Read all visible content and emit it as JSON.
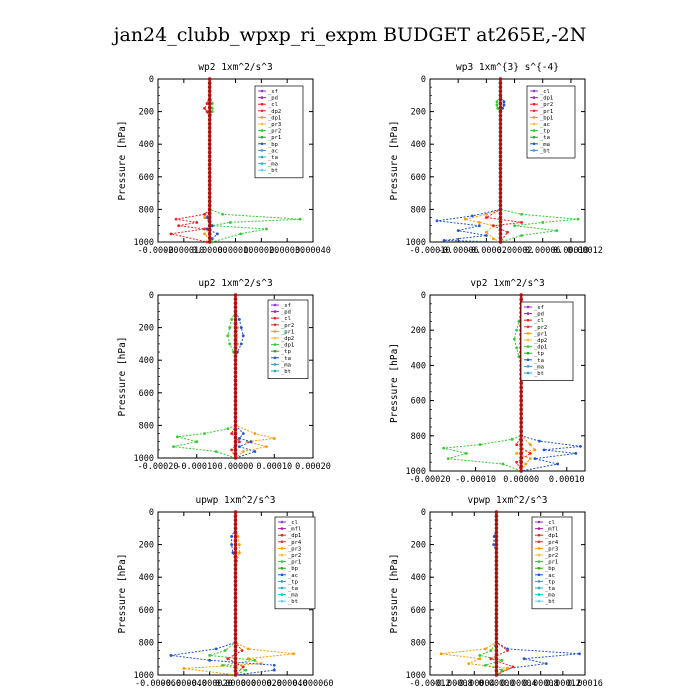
{
  "figure_title": "jan24_clubb_wpxp_ri_expm  BUDGET at265E,-2N",
  "chart_data": [
    {
      "type": "line",
      "title": "wp2  1xm^2/s^3",
      "ylabel": "Pressure [hPa]",
      "xlim": [
        -0.0002,
        0.0004
      ],
      "ylim": [
        1000,
        0
      ],
      "xticks": [
        "-0.00020",
        "-0.00010",
        "0.00000",
        "0.00010",
        "0.00020",
        "0.00030",
        "0.00040"
      ],
      "yticks": [
        "0",
        "200",
        "400",
        "600",
        "800",
        "1000"
      ],
      "legend": [
        "_sf",
        "_pd",
        "_cl",
        "_dp2",
        "_dp1",
        "_pr3",
        "_pr2",
        "_pr1",
        "_bp",
        "_ac",
        "_ta",
        "_ma",
        "_bt"
      ],
      "series": [
        {
          "color": "#ff9900",
          "y": [
            0,
            50,
            100,
            150,
            200,
            250,
            300,
            400,
            500,
            600,
            700,
            800,
            850,
            900,
            950,
            1000
          ],
          "x": [
            0,
            0,
            0,
            0,
            0,
            0,
            0,
            0,
            0,
            0,
            0,
            0,
            -2e-05,
            1e-05,
            -2e-05,
            1e-05
          ]
        },
        {
          "color": "#33cc33",
          "y": [
            0,
            100,
            150,
            180,
            200,
            250,
            300,
            400,
            500,
            600,
            700,
            800,
            830,
            860,
            880,
            900,
            920,
            950,
            1000
          ],
          "x": [
            0,
            0,
            1e-05,
            1e-05,
            1e-05,
            0,
            0,
            0,
            0,
            0,
            0,
            0,
            5e-05,
            0.00035,
            8e-05,
            1e-05,
            0.00022,
            0.00012,
            1e-05
          ]
        },
        {
          "color": "#ee2222",
          "y": [
            0,
            100,
            150,
            180,
            200,
            250,
            300,
            400,
            500,
            600,
            700,
            800,
            830,
            860,
            880,
            900,
            920,
            950,
            1000
          ],
          "x": [
            0,
            0,
            -1e-05,
            -2e-05,
            -1e-05,
            0,
            0,
            0,
            0,
            0,
            0,
            0,
            -2e-05,
            -0.00013,
            -5e-05,
            -0.00012,
            -2e-05,
            -0.00015,
            -1e-05
          ]
        },
        {
          "color": "#2255cc",
          "y": [
            0,
            800,
            850,
            900,
            920,
            950,
            980,
            1000
          ],
          "x": [
            0,
            0,
            -1e-05,
            1e-05,
            -1e-05,
            3e-05,
            1e-05,
            0
          ]
        },
        {
          "color": "#9933cc",
          "y": [
            0,
            200,
            400,
            600,
            800,
            900,
            950,
            1000
          ],
          "x": [
            0,
            0,
            0,
            0,
            0,
            0,
            0,
            0
          ]
        }
      ]
    },
    {
      "type": "line",
      "title": "wp3  1xm^{3} s^{-4}",
      "ylabel": "Pressure [hPa]",
      "xlim": [
        -0.0001,
        0.00012
      ],
      "ylim": [
        1000,
        0
      ],
      "xticks": [
        "-0.00010",
        "-0.00006",
        "-0.00002",
        "0.00002",
        "0.00006",
        "0.00010",
        "0.00012"
      ],
      "yticks": [
        "0",
        "200",
        "400",
        "600",
        "800",
        "1000"
      ],
      "legend": [
        "_cl",
        "_dp1",
        "_pr2",
        "_pr1",
        "_bp1",
        "_ac",
        "_tp",
        "_ta",
        "_ma",
        "_bt"
      ],
      "series": [
        {
          "color": "#33cc33",
          "y": [
            0,
            100,
            140,
            160,
            180,
            200,
            300,
            600,
            800,
            830,
            860,
            880,
            900,
            930,
            960,
            1000
          ],
          "x": [
            0,
            0,
            -5e-06,
            -5e-06,
            -4e-06,
            0,
            0,
            0,
            0,
            3e-05,
            0.00011,
            6e-05,
            2e-05,
            8e-05,
            3e-05,
            0
          ]
        },
        {
          "color": "#ff9900",
          "y": [
            0,
            600,
            800,
            830,
            860,
            880,
            900,
            940,
            980,
            1000
          ],
          "x": [
            0,
            0,
            0,
            -2e-05,
            -5e-05,
            -3e-05,
            -1e-05,
            -2e-05,
            -1e-05,
            0
          ]
        },
        {
          "color": "#2255cc",
          "y": [
            0,
            100,
            140,
            160,
            180,
            200,
            600,
            800,
            840,
            870,
            900,
            930,
            960,
            990,
            1000
          ],
          "x": [
            0,
            0,
            5e-06,
            5e-06,
            3e-06,
            0,
            0,
            0,
            -4e-05,
            -9e-05,
            -3e-05,
            -6e-05,
            -2e-05,
            -8e-05,
            0
          ]
        },
        {
          "color": "#ee2222",
          "y": [
            0,
            800,
            850,
            880,
            900,
            940,
            1000
          ],
          "x": [
            0,
            0,
            -2e-05,
            3e-05,
            -1e-05,
            1e-05,
            0
          ]
        },
        {
          "color": "#9933cc",
          "y": [
            0,
            200,
            400,
            600,
            800,
            900,
            1000
          ],
          "x": [
            0,
            0,
            0,
            0,
            0,
            0,
            0
          ]
        }
      ]
    },
    {
      "type": "line",
      "title": "up2  1xm^2/s^3",
      "ylabel": "Pressure [hPa]",
      "xlim": [
        -0.0002,
        0.0002
      ],
      "ylim": [
        1000,
        0
      ],
      "xticks": [
        "-0.00020",
        "-0.00010",
        "0.00000",
        "0.00010",
        "0.00020"
      ],
      "yticks": [
        "0",
        "200",
        "400",
        "600",
        "800",
        "1000"
      ],
      "legend": [
        "_sf",
        "_pd",
        "_cl",
        "_pr2",
        "_pr1",
        "_dp2",
        "_dp1",
        "_tp",
        "_ta",
        "_ma",
        "_bt"
      ],
      "series": [
        {
          "color": "#33cc33",
          "y": [
            0,
            100,
            150,
            200,
            250,
            300,
            350,
            400,
            600,
            800,
            820,
            850,
            870,
            900,
            930,
            960,
            1000
          ],
          "x": [
            0,
            0,
            -1e-05,
            -1.5e-05,
            -2e-05,
            -1.5e-05,
            -5e-06,
            0,
            0,
            0,
            -2e-05,
            -8e-05,
            -0.00015,
            -0.0001,
            -0.00016,
            -5e-05,
            0
          ]
        },
        {
          "color": "#ff9900",
          "y": [
            0,
            100,
            200,
            300,
            400,
            600,
            800,
            850,
            880,
            900,
            930,
            960,
            1000
          ],
          "x": [
            0,
            0,
            5e-06,
            5e-06,
            0,
            0,
            0,
            5e-05,
            0.0001,
            3e-05,
            8e-05,
            2e-05,
            0
          ]
        },
        {
          "color": "#2255cc",
          "y": [
            0,
            100,
            150,
            200,
            250,
            300,
            350,
            400,
            600,
            800,
            850,
            880,
            900,
            930,
            960,
            1000
          ],
          "x": [
            0,
            0,
            1e-05,
            1.5e-05,
            2e-05,
            1.5e-05,
            5e-06,
            0,
            0,
            0,
            2e-05,
            1e-05,
            4e-05,
            1e-05,
            5e-05,
            0
          ]
        },
        {
          "color": "#ee2222",
          "y": [
            0,
            400,
            800,
            850,
            900,
            950,
            1000
          ],
          "x": [
            0,
            0,
            0,
            -1e-05,
            1e-05,
            -1e-05,
            0
          ]
        },
        {
          "color": "#9933cc",
          "y": [
            0,
            200,
            400,
            600,
            800,
            1000
          ],
          "x": [
            0,
            0,
            0,
            0,
            0,
            0
          ]
        }
      ]
    },
    {
      "type": "line",
      "title": "vp2  1xm^2/s^3",
      "ylabel": "Pressure [hPa]",
      "xlim": [
        -0.0002,
        0.00014
      ],
      "ylim": [
        1000,
        0
      ],
      "xticks": [
        "-0.00020",
        "-0.00010",
        "0.00000",
        "0.00010"
      ],
      "yticks": [
        "0",
        "200",
        "400",
        "600",
        "800",
        "1000"
      ],
      "legend": [
        "_sf",
        "_pd",
        "_cl",
        "_pr2",
        "_pr1",
        "_dp2",
        "_dp1",
        "_tp",
        "_ta",
        "_ma",
        "_bt"
      ],
      "series": [
        {
          "color": "#33cc33",
          "y": [
            0,
            100,
            150,
            200,
            250,
            300,
            350,
            400,
            600,
            800,
            820,
            850,
            870,
            900,
            930,
            960,
            1000
          ],
          "x": [
            0,
            0,
            -5e-06,
            -1e-05,
            -1.5e-05,
            -1e-05,
            -5e-06,
            0,
            0,
            0,
            -2e-05,
            -9e-05,
            -0.00017,
            -0.00012,
            -0.00016,
            -4e-05,
            0
          ]
        },
        {
          "color": "#ff9900",
          "y": [
            0,
            600,
            800,
            850,
            880,
            900,
            930,
            960,
            1000
          ],
          "x": [
            0,
            0,
            0,
            2e-05,
            3e-05,
            -1e-05,
            2e-05,
            1e-05,
            0
          ]
        },
        {
          "color": "#2255cc",
          "y": [
            0,
            100,
            150,
            200,
            250,
            300,
            350,
            400,
            600,
            800,
            830,
            860,
            880,
            900,
            930,
            960,
            1000
          ],
          "x": [
            0,
            0,
            1e-05,
            1.5e-05,
            2e-05,
            1.5e-05,
            1e-05,
            0,
            0,
            0,
            4e-05,
            0.00013,
            5e-05,
            0.00012,
            3e-05,
            8e-05,
            0
          ]
        },
        {
          "color": "#ee2222",
          "y": [
            0,
            400,
            800,
            850,
            900,
            950,
            1000
          ],
          "x": [
            0,
            0,
            0,
            -1e-05,
            2e-05,
            -1e-05,
            0
          ]
        },
        {
          "color": "#9933cc",
          "y": [
            0,
            200,
            400,
            600,
            800,
            1000
          ],
          "x": [
            0,
            0,
            0,
            0,
            0,
            0
          ]
        }
      ]
    },
    {
      "type": "line",
      "title": "upwp  1xm^2/s^3",
      "ylabel": "Pressure [hPa]",
      "xlim": [
        -6e-05,
        6e-05
      ],
      "ylim": [
        1000,
        0
      ],
      "xticks": [
        "-0.000060",
        "-0.000040",
        "-0.000020",
        "0.000000",
        "0.000020",
        "0.000040",
        "0.000060"
      ],
      "yticks": [
        "0",
        "200",
        "400",
        "600",
        "800",
        "1000"
      ],
      "legend": [
        "_cl",
        "_mfl",
        "_dp1",
        "_pr4",
        "_pr3",
        "_pr2",
        "_pr1",
        "_bp",
        "_ac",
        "_tp",
        "_ta",
        "_ma",
        "_bt"
      ],
      "series": [
        {
          "color": "#ff9900",
          "y": [
            0,
            100,
            150,
            200,
            250,
            300,
            400,
            600,
            800,
            840,
            870,
            900,
            930,
            960,
            1000
          ],
          "x": [
            0,
            0,
            2e-06,
            3e-06,
            3e-06,
            1e-06,
            0,
            0,
            0,
            1e-05,
            4.5e-05,
            1e-05,
            2e-05,
            -4e-05,
            0
          ]
        },
        {
          "color": "#2255cc",
          "y": [
            0,
            100,
            150,
            200,
            250,
            300,
            400,
            600,
            800,
            840,
            880,
            910,
            940,
            970,
            1000
          ],
          "x": [
            0,
            0,
            -3e-06,
            -3e-06,
            -2e-06,
            0,
            0,
            0,
            0,
            -1.5e-05,
            -5e-05,
            -2e-05,
            3e-05,
            3e-05,
            0
          ]
        },
        {
          "color": "#33cc33",
          "y": [
            0,
            600,
            800,
            850,
            880,
            910,
            940,
            970,
            1000
          ],
          "x": [
            0,
            0,
            0,
            -8e-06,
            -2e-05,
            1.5e-05,
            -1e-05,
            8e-06,
            0
          ]
        },
        {
          "color": "#ee2222",
          "y": [
            0,
            600,
            800,
            850,
            900,
            950,
            1000
          ],
          "x": [
            0,
            0,
            0,
            5e-06,
            -6e-06,
            6e-06,
            0
          ]
        },
        {
          "color": "#9933cc",
          "y": [
            0,
            200,
            400,
            600,
            800,
            1000
          ],
          "x": [
            0,
            0,
            0,
            0,
            0,
            0
          ]
        }
      ]
    },
    {
      "type": "line",
      "title": "vpwp  1xm^2/s^3",
      "ylabel": "Pressure [hPa]",
      "xlim": [
        -0.00012,
        0.00016
      ],
      "ylim": [
        1000,
        0
      ],
      "xticks": [
        "-0.00012",
        "-0.00008",
        "-0.00004",
        "0.00000",
        "0.00004",
        "0.00008",
        "0.00012",
        "0.00016"
      ],
      "yticks": [
        "0",
        "200",
        "400",
        "600",
        "800",
        "1000"
      ],
      "legend": [
        "_cl",
        "_mfl",
        "_dp1",
        "_pr4",
        "_pr3",
        "_pr2",
        "_pr1",
        "_bp",
        "_ac",
        "_tp",
        "_ta",
        "_ma",
        "_bt"
      ],
      "series": [
        {
          "color": "#2255cc",
          "y": [
            0,
            100,
            150,
            200,
            250,
            600,
            800,
            840,
            870,
            900,
            930,
            960,
            1000
          ],
          "x": [
            0,
            0,
            -4e-06,
            -5e-06,
            0,
            0,
            0,
            2e-05,
            0.00015,
            5e-05,
            9e-05,
            2e-05,
            0
          ]
        },
        {
          "color": "#ff9900",
          "y": [
            0,
            600,
            800,
            840,
            870,
            900,
            930,
            960,
            1000
          ],
          "x": [
            0,
            0,
            0,
            -2e-05,
            -0.0001,
            -3e-05,
            -5e-05,
            2e-05,
            0
          ]
        },
        {
          "color": "#33cc33",
          "y": [
            0,
            600,
            800,
            850,
            880,
            910,
            940,
            970,
            1000
          ],
          "x": [
            0,
            0,
            0,
            -1e-05,
            -3e-05,
            1e-05,
            -2e-05,
            1e-05,
            0
          ]
        },
        {
          "color": "#ee2222",
          "y": [
            0,
            600,
            800,
            850,
            900,
            950,
            1000
          ],
          "x": [
            0,
            0,
            0,
            2e-05,
            -1e-05,
            3e-05,
            0
          ]
        },
        {
          "color": "#9933cc",
          "y": [
            0,
            200,
            400,
            600,
            800,
            1000
          ],
          "x": [
            0,
            0,
            0,
            0,
            0,
            0
          ]
        }
      ]
    }
  ],
  "palette": [
    "#9933cc",
    "#aa22aa",
    "#ee2222",
    "#dd3333",
    "#ff9900",
    "#ffbb33",
    "#33cc33",
    "#22aa22",
    "#2255cc",
    "#3399cc",
    "#22aacc",
    "#00cccc",
    "#66ccff"
  ]
}
